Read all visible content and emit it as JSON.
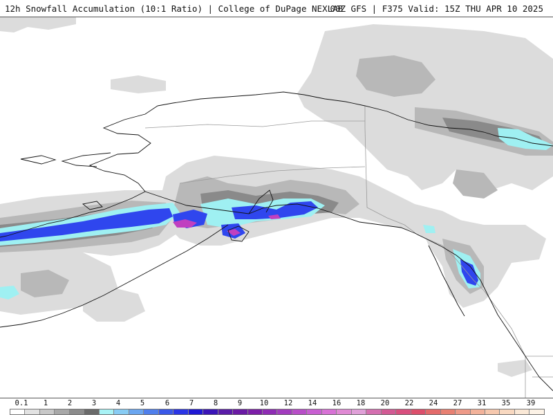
{
  "header": {
    "title_left": "12h Snowfall Accumulation (10:1 Ratio) | College of DuPage NEXLAB",
    "title_right": "00Z GFS | F375 Valid: 15Z THU APR 10 2025"
  },
  "legend": {
    "tick_labels": [
      "0.1",
      "1",
      "2",
      "3",
      "4",
      "5",
      "6",
      "7",
      "8",
      "9",
      "10",
      "12",
      "14",
      "16",
      "18",
      "20",
      "22",
      "24",
      "27",
      "31",
      "35",
      "39"
    ],
    "colors": [
      "#ffffff",
      "#e2e2e2",
      "#c8c8c8",
      "#a8a8a8",
      "#8c8c8c",
      "#6a6a6a",
      "#a8f2f5",
      "#88ccf4",
      "#6aa6f0",
      "#4f7fec",
      "#3a58e8",
      "#2a35e6",
      "#1f18d4",
      "#3a14b8",
      "#5a1ca8",
      "#6a1aa4",
      "#7c1ea8",
      "#8e2cb4",
      "#a23cbe",
      "#b84ec8",
      "#c85fd2",
      "#d872d6",
      "#e08ad4",
      "#e0a0d8",
      "#d46fb0",
      "#d25a94",
      "#d84f7e",
      "#dc4f6c",
      "#e36a6a",
      "#e88072",
      "#ee9a88",
      "#f2b29a",
      "#f6c8ae",
      "#f8d8c0",
      "#fae8d6",
      "#fcf2e6"
    ]
  },
  "map": {
    "colors": {
      "light_gray": "#dcdcdc",
      "mid_gray": "#b8b8b8",
      "dark_gray": "#8a8a8a",
      "cyan": "#9ff0f2",
      "light_blue": "#7fb0f2",
      "blue": "#2f46ee",
      "deep_blue": "#1a1ad8",
      "magenta": "#c040c0",
      "coastline": "#111111",
      "borders": "#9a9a9a"
    }
  }
}
